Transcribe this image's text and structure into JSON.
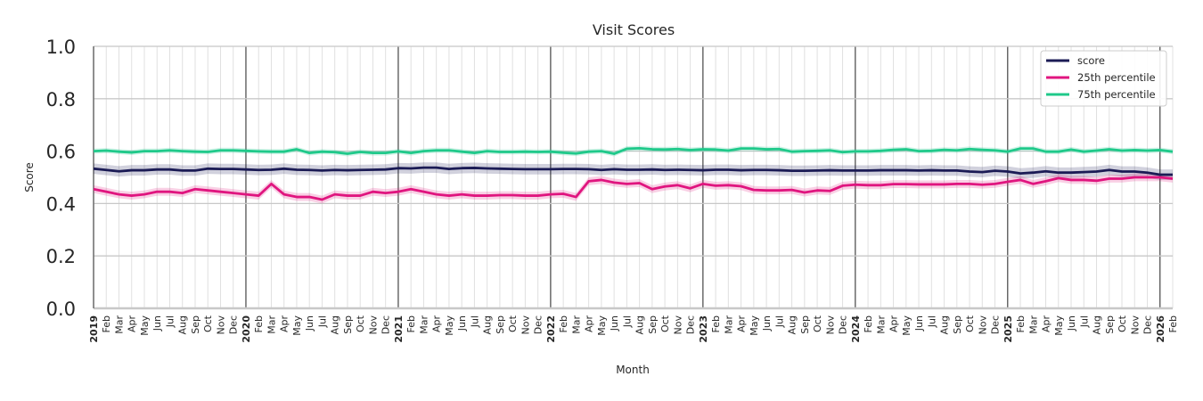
{
  "chart_data": {
    "type": "line",
    "title": "Visit Scores",
    "xlabel": "Month",
    "ylabel": "Score",
    "ylim": [
      0,
      1
    ],
    "yticks": [
      "0.0",
      "0.2",
      "0.4",
      "0.6",
      "0.8",
      "1.0"
    ],
    "x_start": "2019-01",
    "x_end": "2026-02",
    "month_labels": [
      "Jan",
      "Feb",
      "Mar",
      "Apr",
      "May",
      "Jun",
      "Jul",
      "Aug",
      "Sep",
      "Oct",
      "Nov",
      "Dec"
    ],
    "grid": true,
    "legend_placement": "top-right",
    "series": [
      {
        "name": "score",
        "color": "#1b1b55",
        "band": 0.02,
        "values": [
          0.533,
          0.528,
          0.523,
          0.527,
          0.527,
          0.53,
          0.53,
          0.526,
          0.526,
          0.533,
          0.532,
          0.532,
          0.53,
          0.528,
          0.529,
          0.533,
          0.529,
          0.528,
          0.526,
          0.528,
          0.527,
          0.528,
          0.529,
          0.53,
          0.535,
          0.534,
          0.537,
          0.537,
          0.532,
          0.535,
          0.536,
          0.534,
          0.533,
          0.532,
          0.531,
          0.531,
          0.531,
          0.532,
          0.532,
          0.531,
          0.528,
          0.531,
          0.529,
          0.529,
          0.53,
          0.528,
          0.529,
          0.528,
          0.527,
          0.529,
          0.529,
          0.527,
          0.528,
          0.528,
          0.527,
          0.525,
          0.525,
          0.526,
          0.527,
          0.526,
          0.526,
          0.526,
          0.527,
          0.527,
          0.527,
          0.526,
          0.527,
          0.526,
          0.526,
          0.522,
          0.52,
          0.525,
          0.522,
          0.515,
          0.518,
          0.523,
          0.518,
          0.518,
          0.52,
          0.522,
          0.528,
          0.522,
          0.522,
          0.518,
          0.51,
          0.51
        ]
      },
      {
        "name": "25th percentile",
        "color": "#e0157f",
        "band": 0.015,
        "values": [
          0.455,
          0.445,
          0.435,
          0.43,
          0.435,
          0.445,
          0.445,
          0.44,
          0.455,
          0.45,
          0.445,
          0.44,
          0.435,
          0.43,
          0.475,
          0.435,
          0.425,
          0.425,
          0.415,
          0.435,
          0.43,
          0.43,
          0.445,
          0.44,
          0.445,
          0.455,
          0.445,
          0.435,
          0.43,
          0.435,
          0.43,
          0.43,
          0.432,
          0.432,
          0.43,
          0.43,
          0.435,
          0.437,
          0.425,
          0.485,
          0.49,
          0.48,
          0.475,
          0.478,
          0.455,
          0.465,
          0.47,
          0.458,
          0.475,
          0.468,
          0.47,
          0.466,
          0.452,
          0.45,
          0.45,
          0.452,
          0.442,
          0.45,
          0.448,
          0.468,
          0.472,
          0.47,
          0.47,
          0.474,
          0.474,
          0.473,
          0.473,
          0.473,
          0.475,
          0.475,
          0.472,
          0.475,
          0.483,
          0.49,
          0.475,
          0.485,
          0.497,
          0.49,
          0.49,
          0.487,
          0.495,
          0.495,
          0.5,
          0.5,
          0.5,
          0.495
        ]
      },
      {
        "name": "75th percentile",
        "color": "#1fc98a",
        "band": 0.01,
        "values": [
          0.6,
          0.602,
          0.598,
          0.595,
          0.6,
          0.6,
          0.603,
          0.6,
          0.598,
          0.597,
          0.603,
          0.603,
          0.601,
          0.599,
          0.598,
          0.598,
          0.607,
          0.593,
          0.598,
          0.596,
          0.59,
          0.597,
          0.593,
          0.593,
          0.599,
          0.593,
          0.6,
          0.603,
          0.603,
          0.598,
          0.593,
          0.6,
          0.597,
          0.597,
          0.598,
          0.597,
          0.598,
          0.594,
          0.591,
          0.598,
          0.6,
          0.59,
          0.609,
          0.611,
          0.607,
          0.606,
          0.608,
          0.604,
          0.607,
          0.606,
          0.602,
          0.61,
          0.61,
          0.607,
          0.608,
          0.598,
          0.6,
          0.601,
          0.603,
          0.596,
          0.599,
          0.599,
          0.601,
          0.605,
          0.607,
          0.6,
          0.601,
          0.605,
          0.603,
          0.608,
          0.605,
          0.603,
          0.598,
          0.61,
          0.61,
          0.598,
          0.598,
          0.606,
          0.598,
          0.602,
          0.607,
          0.602,
          0.604,
          0.602,
          0.604,
          0.598
        ]
      }
    ]
  }
}
